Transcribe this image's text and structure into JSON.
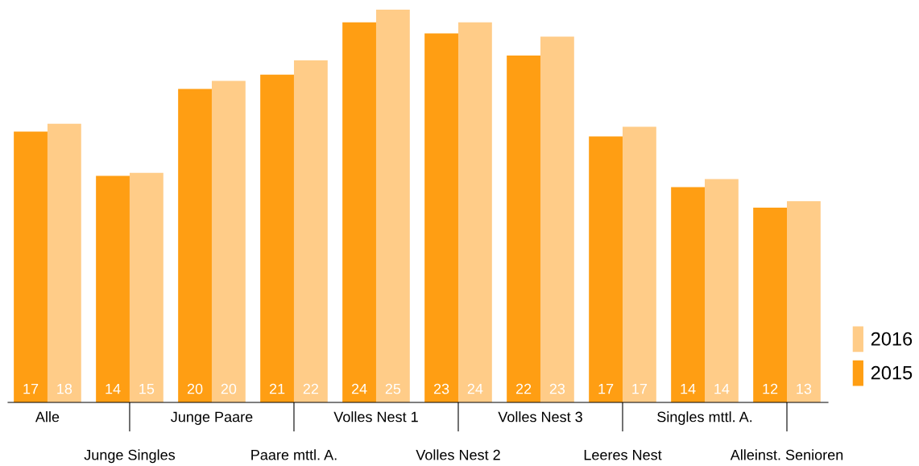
{
  "chart_data": {
    "type": "bar",
    "categories": [
      "Alle",
      "Junge Singles",
      "Junge Paare",
      "Paare mttl. A.",
      "Volles Nest 1",
      "Volles Nest 2",
      "Volles Nest 3",
      "Leeres Nest",
      "Singles mttl. A.",
      "Alleinst. Senioren"
    ],
    "series": [
      {
        "name": "2015",
        "color": "#ff9e13",
        "values": [
          17.1,
          14.3,
          19.8,
          20.7,
          24.0,
          23.3,
          21.9,
          16.8,
          13.6,
          12.3
        ],
        "value_labels": [
          "17",
          "14",
          "20",
          "21",
          "24",
          "23",
          "22",
          "17",
          "14",
          "12"
        ]
      },
      {
        "name": "2016",
        "color": "#ffcc88",
        "values": [
          17.6,
          14.5,
          20.3,
          21.6,
          24.8,
          24.0,
          23.1,
          17.4,
          14.1,
          12.7
        ],
        "value_labels": [
          "18",
          "15",
          "20",
          "22",
          "25",
          "24",
          "23",
          "17",
          "14",
          "13"
        ]
      }
    ],
    "legend": "bottom right",
    "grid": false
  }
}
